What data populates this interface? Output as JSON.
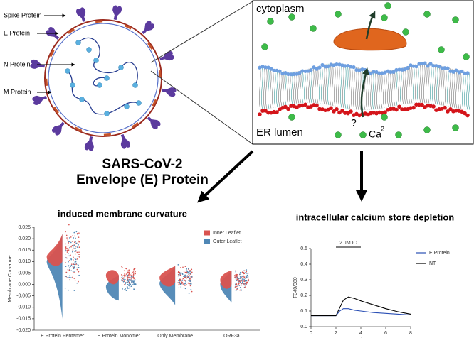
{
  "virus": {
    "labels": [
      "Spike Protein",
      "E Protein",
      "N Protein",
      "M Protein"
    ],
    "title": "SARS-CoV-2",
    "subtitle": "Envelope (E) Protein"
  },
  "membrane": {
    "top_label": "cytoplasm",
    "bottom_label": "ER lumen",
    "question": "?",
    "ion": "Ca",
    "charge": "2+"
  },
  "curvature_plot": {
    "title": "induced membrane curvature",
    "y_label": "Membrane Curvature",
    "categories": [
      "E Protein Pentamer",
      "E Protein Monomer",
      "Only Membrane",
      "ORF3a"
    ],
    "series": [
      {
        "name": "Inner Leaflet",
        "color": "#d9534f"
      },
      {
        "name": "Outer Leaflet",
        "color": "#4f87b5"
      }
    ],
    "ylim": [
      -0.02,
      0.025
    ],
    "yticks": [
      {
        "value": -0.02,
        "label": "-0.020"
      },
      -0.015,
      {
        "value": -0.01,
        "label": "-0.010"
      },
      -0.005,
      {
        "value": 0,
        "label": "0.000"
      },
      0.005,
      {
        "value": 0.01,
        "label": "0.010"
      },
      0.015,
      {
        "value": 0.02,
        "label": "0.020"
      },
      0.025
    ]
  },
  "calcium_plot": {
    "type": "line",
    "title": "intracellular calcium store depletion",
    "x_label": "min",
    "y_label": "F340/380",
    "annotation": "2 µM IO",
    "annotation_range": [
      2,
      4
    ],
    "x": [
      0,
      1,
      2,
      2.3,
      2.6,
      3,
      3.5,
      4,
      5,
      6,
      7,
      8
    ],
    "series": [
      {
        "name": "E Protein",
        "color": "#2a4fb5",
        "values": [
          0.07,
          0.07,
          0.07,
          0.1,
          0.115,
          0.115,
          0.105,
          0.1,
          0.09,
          0.085,
          0.08,
          0.075
        ]
      },
      {
        "name": "NT",
        "color": "#000000",
        "values": [
          0.07,
          0.07,
          0.07,
          0.12,
          0.17,
          0.19,
          0.18,
          0.165,
          0.14,
          0.115,
          0.095,
          0.08
        ]
      }
    ],
    "xlim": [
      0,
      8
    ],
    "xticks": [
      0,
      2,
      4,
      6,
      8
    ],
    "ylim": [
      0,
      0.5
    ],
    "yticks": [
      {
        "value": 0,
        "label": "0.0"
      },
      0.1,
      0.2,
      0.3,
      0.4,
      0.5
    ]
  }
}
